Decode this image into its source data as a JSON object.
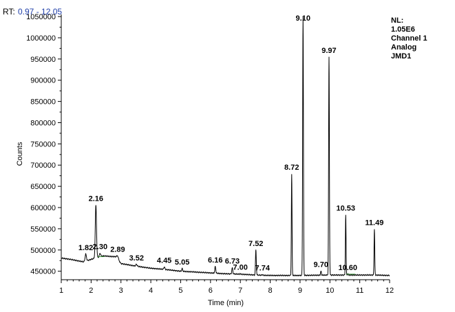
{
  "header": {
    "rt_label": "RT:",
    "rt_range": "0.97 - 12.05"
  },
  "info": {
    "lines": [
      "NL:",
      "1.05E6",
      "Channel 1",
      "Analog",
      "JMD1"
    ]
  },
  "colors": {
    "trace": "#000000",
    "rt_value": "#1f3ea8",
    "baseline_marker": "#2e8b2e"
  },
  "chart_data": {
    "type": "line",
    "xlabel": "Time (min)",
    "ylabel": "Counts",
    "xlim": [
      1,
      12
    ],
    "ylim": [
      430000,
      1055000
    ],
    "x_ticks": [
      1,
      2,
      3,
      4,
      5,
      6,
      7,
      8,
      9,
      10,
      11,
      12
    ],
    "y_ticks": [
      450000,
      500000,
      550000,
      600000,
      650000,
      700000,
      750000,
      800000,
      850000,
      900000,
      950000,
      1000000,
      1050000
    ],
    "baseline": [
      [
        1.0,
        481000
      ],
      [
        1.3,
        478000
      ],
      [
        1.6,
        474000
      ],
      [
        1.75,
        472000
      ],
      [
        2.0,
        478000
      ],
      [
        2.4,
        486000
      ],
      [
        2.85,
        484000
      ],
      [
        3.0,
        468000
      ],
      [
        3.5,
        462000
      ],
      [
        4.0,
        457000
      ],
      [
        4.5,
        454000
      ],
      [
        5.0,
        450000
      ],
      [
        5.5,
        448000
      ],
      [
        6.0,
        446000
      ],
      [
        6.5,
        444000
      ],
      [
        7.0,
        443000
      ],
      [
        7.5,
        441000
      ],
      [
        8.0,
        440000
      ],
      [
        8.5,
        440000
      ],
      [
        9.0,
        440000
      ],
      [
        9.5,
        440500
      ],
      [
        10.0,
        441000
      ],
      [
        10.5,
        441000
      ],
      [
        11.0,
        441000
      ],
      [
        11.5,
        441000
      ],
      [
        12.0,
        440000
      ]
    ],
    "peaks": [
      {
        "label": "1.82",
        "x": 1.82,
        "y": 490000,
        "width": 0.05
      },
      {
        "label": "2.16",
        "x": 2.16,
        "y": 606000,
        "width": 0.045
      },
      {
        "label": "2.30",
        "x": 2.3,
        "y": 492000,
        "width": 0.05
      },
      {
        "label": "2.89",
        "x": 2.89,
        "y": 486000,
        "width": 0.05
      },
      {
        "label": "3.52",
        "x": 3.52,
        "y": 466000,
        "width": 0.05
      },
      {
        "label": "4.45",
        "x": 4.45,
        "y": 460000,
        "width": 0.04
      },
      {
        "label": "5.05",
        "x": 5.05,
        "y": 456000,
        "width": 0.035
      },
      {
        "label": "6.16",
        "x": 6.16,
        "y": 461000,
        "width": 0.035
      },
      {
        "label": "6.73",
        "x": 6.73,
        "y": 458000,
        "width": 0.035
      },
      {
        "label": "7.00",
        "x": 7.0,
        "y": 444000,
        "width": 0.03
      },
      {
        "label": "7.52",
        "x": 7.52,
        "y": 500000,
        "width": 0.03
      },
      {
        "label": "7.74",
        "x": 7.74,
        "y": 442000,
        "width": 0.03
      },
      {
        "label": "8.72",
        "x": 8.72,
        "y": 679000,
        "width": 0.025
      },
      {
        "label": "9.10",
        "x": 9.1,
        "y": 1050000,
        "width": 0.028
      },
      {
        "label": "9.70",
        "x": 9.7,
        "y": 450000,
        "width": 0.03
      },
      {
        "label": "9.97",
        "x": 9.97,
        "y": 955000,
        "width": 0.028
      },
      {
        "label": "10.53",
        "x": 10.53,
        "y": 583000,
        "width": 0.025
      },
      {
        "label": "10.60",
        "x": 10.6,
        "y": 443000,
        "width": 0.03
      },
      {
        "label": "11.49",
        "x": 11.49,
        "y": 549000,
        "width": 0.025
      }
    ]
  }
}
